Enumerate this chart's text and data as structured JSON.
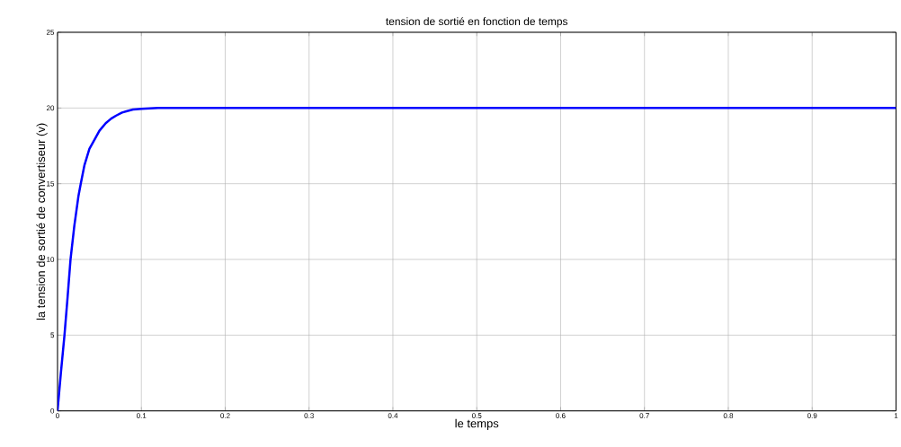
{
  "chart_data": {
    "type": "line",
    "title": "tension de sortié en fonction de temps",
    "xlabel": "le temps",
    "ylabel": "la tension de sortié de convertiseur (v)",
    "x": [
      0,
      0.004,
      0.0083,
      0.012,
      0.0155,
      0.02,
      0.025,
      0.0277,
      0.032,
      0.038,
      0.045,
      0.05,
      0.0575,
      0.064,
      0.07,
      0.077,
      0.083,
      0.09,
      0.1,
      0.12,
      0.15,
      0.2,
      0.3,
      0.4,
      0.5,
      0.6,
      0.7,
      0.8,
      0.9,
      1
    ],
    "series": [
      {
        "color": "#0000ff",
        "values": [
          0,
          2.5,
          5,
          7.5,
          10,
          12.2,
          14.2,
          15,
          16.2,
          17.3,
          18,
          18.5,
          19,
          19.3,
          19.5,
          19.7,
          19.8,
          19.9,
          19.95,
          20,
          20,
          20,
          20,
          20,
          20,
          20,
          20,
          20,
          20,
          20
        ]
      }
    ],
    "xlim": [
      0,
      1
    ],
    "ylim": [
      0,
      25
    ],
    "xticks": [
      0,
      0.1,
      0.2,
      0.3,
      0.4,
      0.5,
      0.6,
      0.7,
      0.8,
      0.9,
      1
    ],
    "yticks": [
      0,
      5,
      10,
      15,
      20,
      25
    ],
    "grid": true,
    "marker": "none",
    "line_style": "solid"
  }
}
